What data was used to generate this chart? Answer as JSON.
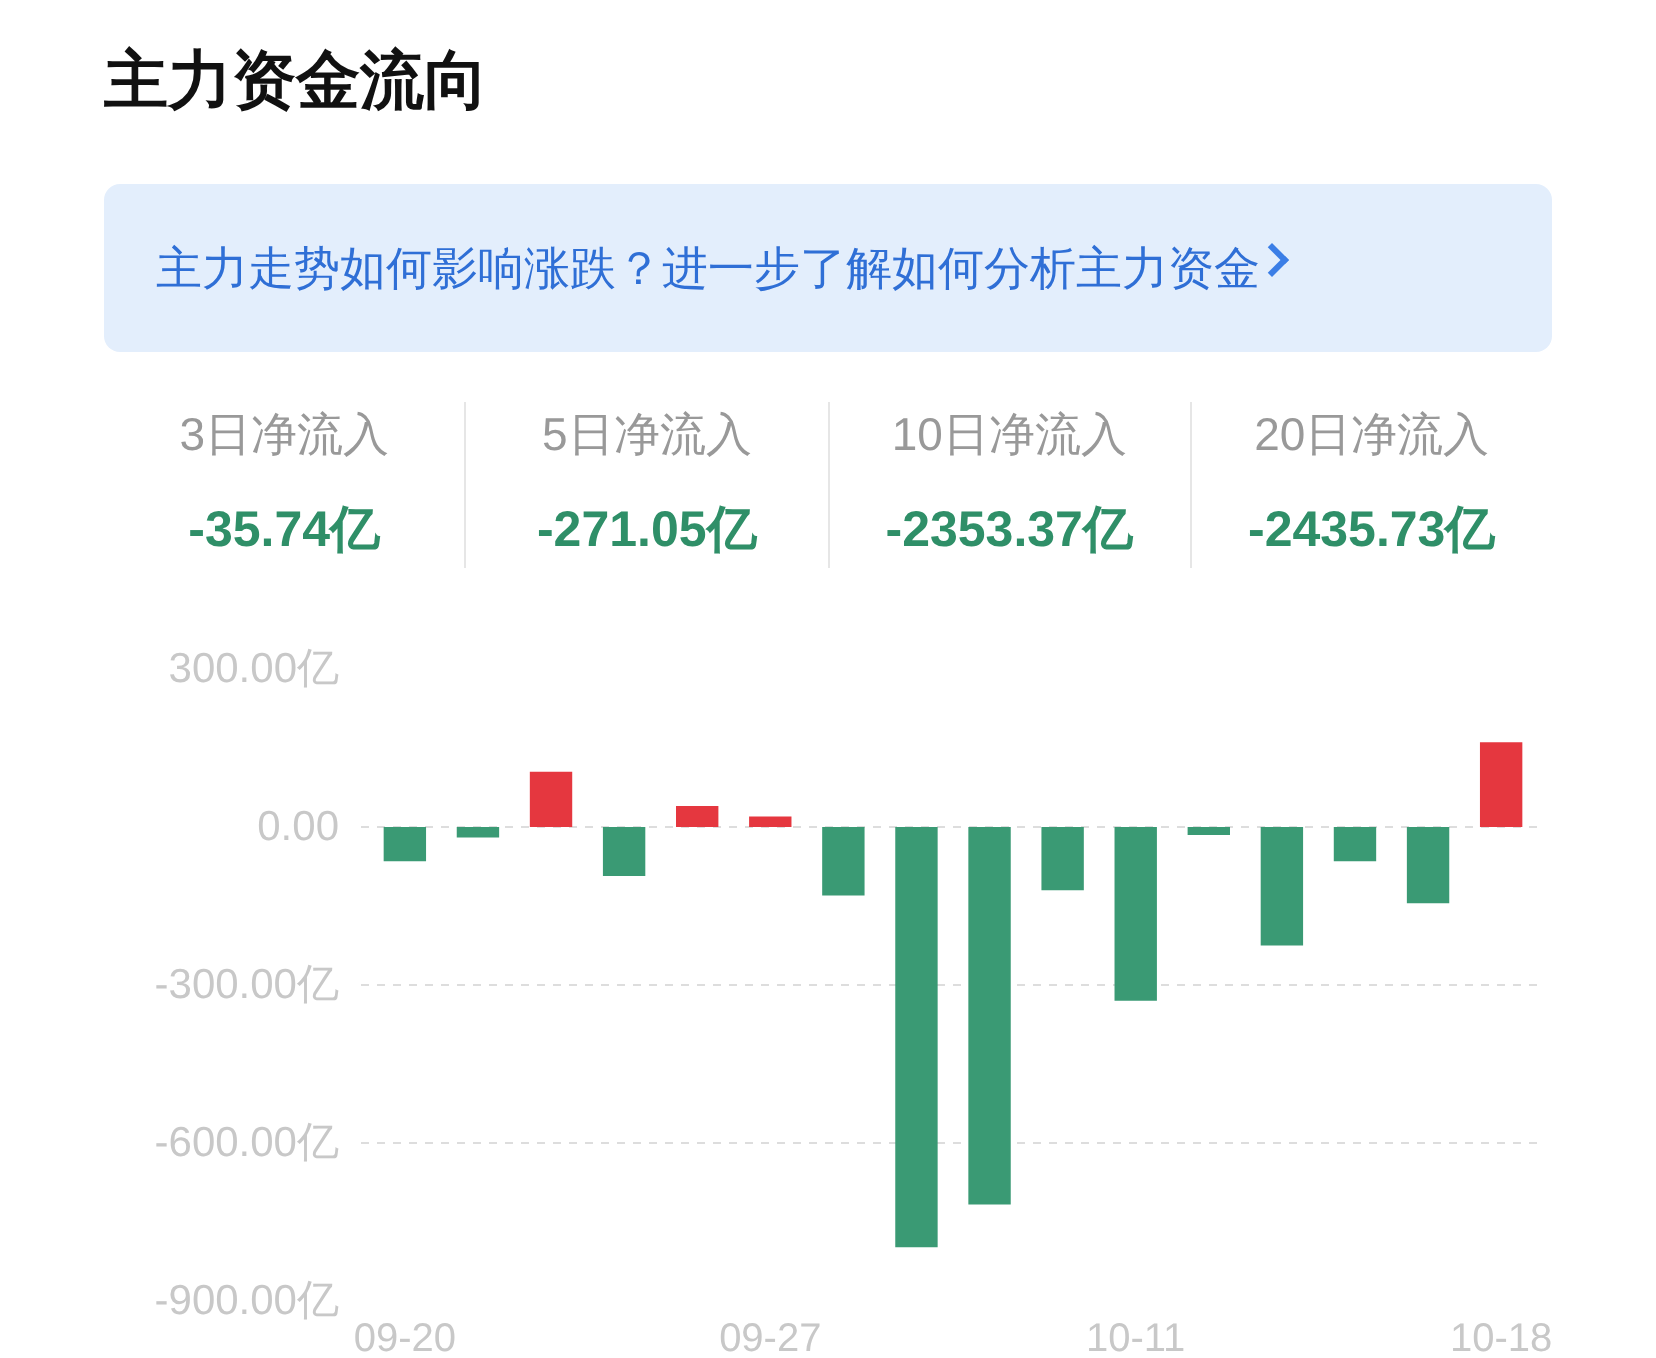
{
  "chart_data": {
    "type": "bar",
    "title": "主力资金流向",
    "subtitle": "主力走势如何影响涨跌？进一步了解如何分析主力资金",
    "annotations": [
      "3日净流入",
      "-35.74亿",
      "5日净流入",
      "-271.05亿",
      "10日净流入",
      "-2353.37亿",
      "20日净流入",
      "-2435.73亿"
    ],
    "categories": [
      "09-20",
      null,
      null,
      null,
      null,
      "09-27",
      null,
      null,
      null,
      null,
      "10-11",
      null,
      null,
      null,
      null,
      "10-18"
    ],
    "values": [
      -65,
      -20,
      105,
      -93,
      40,
      20,
      -130,
      -798,
      -717,
      -120,
      -330,
      -15,
      -225,
      -65,
      -145,
      161
    ],
    "colors": [
      "#3a9a74",
      "#3a9a74",
      "#e5373f",
      "#3a9a74",
      "#e5373f",
      "#e5373f",
      "#3a9a74",
      "#3a9a74",
      "#3a9a74",
      "#3a9a74",
      "#3a9a74",
      "#3a9a74",
      "#3a9a74",
      "#3a9a74",
      "#3a9a74",
      "#e5373f"
    ],
    "ylim": [
      -900,
      300
    ],
    "yticks": [
      {
        "value": 300,
        "label": "300.00亿"
      },
      {
        "value": 0,
        "label": "0.00"
      },
      {
        "value": -300,
        "label": "-300.00亿"
      },
      {
        "value": -600,
        "label": "-600.00亿"
      },
      {
        "value": -900,
        "label": "-900.00亿"
      }
    ],
    "grid": "y"
  }
}
